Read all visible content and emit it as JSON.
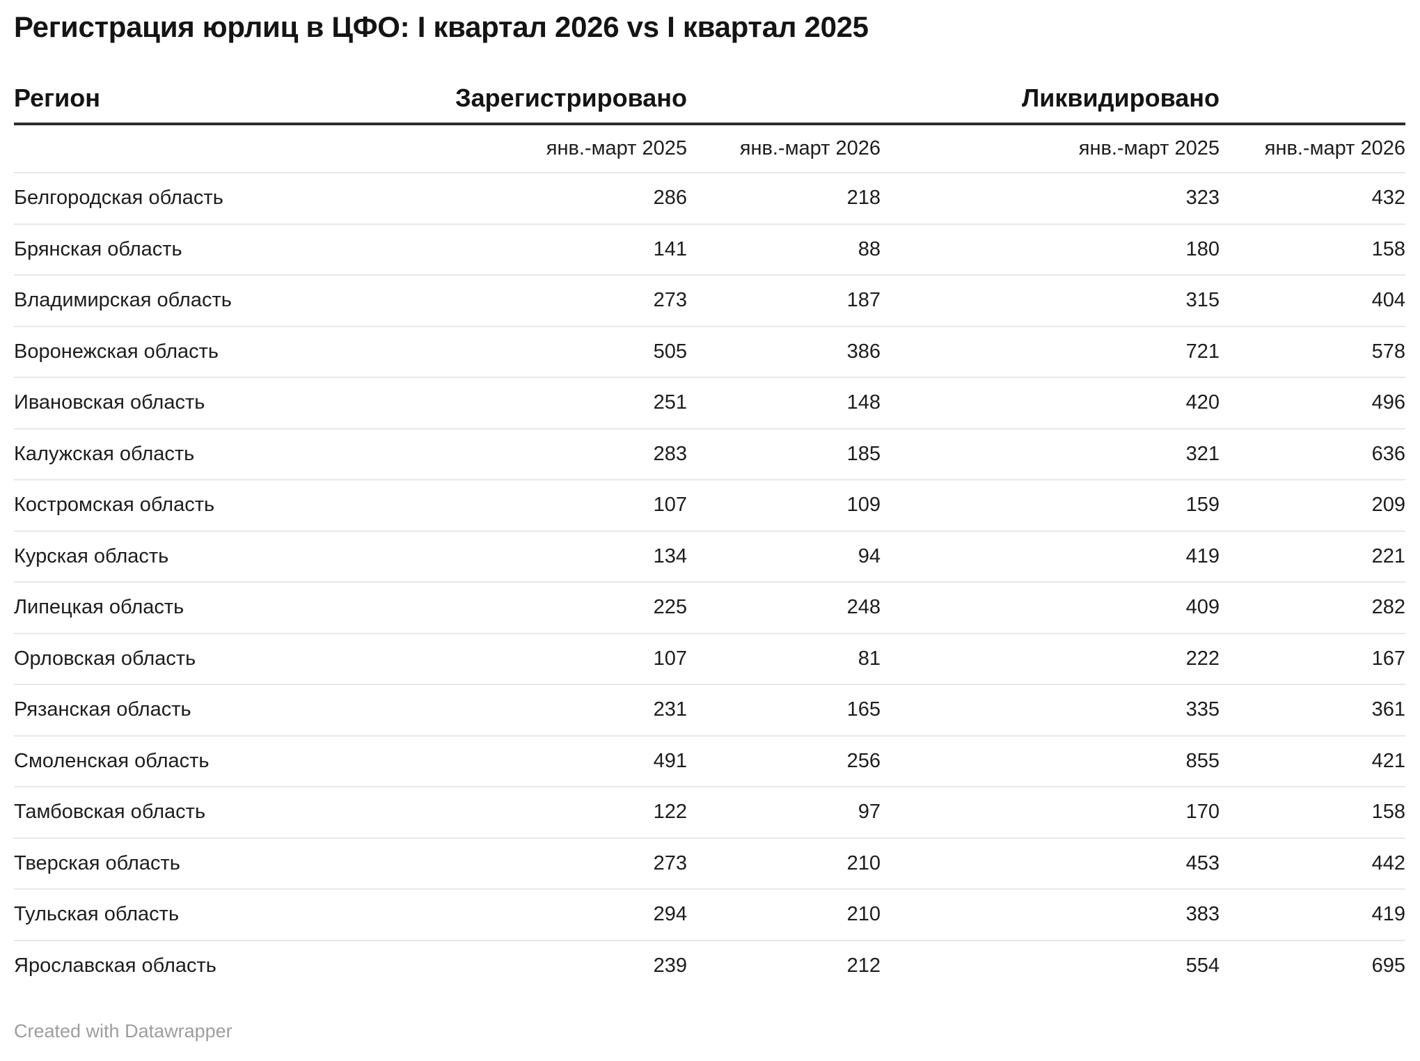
{
  "title": "Регистрация юрлиц в ЦФО: I квартал 2026 vs I квартал 2025",
  "footer": {
    "credit": "Created with Datawrapper"
  },
  "colors": {
    "text": "#1d1d1d",
    "title_text": "#141414",
    "header_rule": "#2e2e2e",
    "row_rule": "#e8e8e8",
    "credit_text": "#9e9e9e",
    "background": "#ffffff"
  },
  "chart_data": {
    "type": "table",
    "title": "Регистрация юрлиц в ЦФО: I квартал 2026 vs I квартал 2025",
    "column_groups": [
      {
        "label": "Регион",
        "span": 1
      },
      {
        "label": "Зарегистрировано",
        "span": 2
      },
      {
        "label": "Ликвидировано",
        "span": 2
      }
    ],
    "sub_headers": [
      "янв.-март 2025",
      "янв.-март 2026",
      "янв.-март 2025",
      "янв.-март 2026"
    ],
    "rows": [
      {
        "region": "Белгородская область",
        "values": [
          286,
          218,
          323,
          432
        ]
      },
      {
        "region": "Брянская область",
        "values": [
          141,
          88,
          180,
          158
        ]
      },
      {
        "region": "Владимирская область",
        "values": [
          273,
          187,
          315,
          404
        ]
      },
      {
        "region": "Воронежская область",
        "values": [
          505,
          386,
          721,
          578
        ]
      },
      {
        "region": "Ивановская область",
        "values": [
          251,
          148,
          420,
          496
        ]
      },
      {
        "region": "Калужская область",
        "values": [
          283,
          185,
          321,
          636
        ]
      },
      {
        "region": "Костромская область",
        "values": [
          107,
          109,
          159,
          209
        ]
      },
      {
        "region": "Курская область",
        "values": [
          134,
          94,
          419,
          221
        ]
      },
      {
        "region": "Липецкая область",
        "values": [
          225,
          248,
          409,
          282
        ]
      },
      {
        "region": "Орловская область",
        "values": [
          107,
          81,
          222,
          167
        ]
      },
      {
        "region": "Рязанская область",
        "values": [
          231,
          165,
          335,
          361
        ]
      },
      {
        "region": "Смоленская область",
        "values": [
          491,
          256,
          855,
          421
        ]
      },
      {
        "region": "Тамбовская область",
        "values": [
          122,
          97,
          170,
          158
        ]
      },
      {
        "region": "Тверская область",
        "values": [
          273,
          210,
          453,
          442
        ]
      },
      {
        "region": "Тульская область",
        "values": [
          294,
          210,
          383,
          419
        ]
      },
      {
        "region": "Ярославская область",
        "values": [
          239,
          212,
          554,
          695
        ]
      }
    ]
  }
}
